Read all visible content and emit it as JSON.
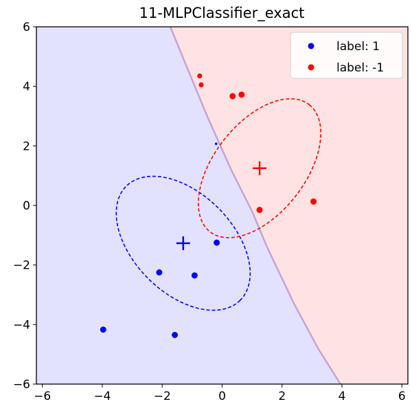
{
  "chart_data": {
    "type": "scatter",
    "title": "11-MLPClassifier_exact",
    "xlabel": "",
    "ylabel": "",
    "xlim": [
      -6.2,
      6.2
    ],
    "ylim": [
      -6,
      6
    ],
    "xticks": [
      -6,
      -4,
      -2,
      0,
      2,
      4,
      6
    ],
    "yticks": [
      -6,
      -4,
      -2,
      0,
      2,
      4,
      6
    ],
    "xtick_labels": [
      "−6",
      "−4",
      "−2",
      "0",
      "2",
      "4",
      "6"
    ],
    "ytick_labels": [
      "−6",
      "−4",
      "−2",
      "0",
      "2",
      "4",
      "6"
    ],
    "grid": false,
    "legend_position": "top-right",
    "colors": {
      "class_1": "#0000ff",
      "class_neg1": "#ff0000",
      "region_1": "#e2e2ff",
      "region_neg1": "#ffe2e2",
      "boundary": "#c8a0d8"
    },
    "decision_boundary": [
      [
        -1.73,
        6
      ],
      [
        -1.2,
        4.7
      ],
      [
        -0.5,
        3.0
      ],
      [
        0.3,
        1.2
      ],
      [
        1.0,
        -0.2
      ],
      [
        1.5,
        -1.4
      ],
      [
        2.4,
        -3.3
      ],
      [
        3.2,
        -4.8
      ],
      [
        3.95,
        -6
      ]
    ],
    "series": [
      {
        "name": "label: 1",
        "color": "#0000ff",
        "points": [
          [
            -3.97,
            -4.17
          ],
          [
            -1.58,
            -4.35
          ],
          [
            -2.1,
            -2.25
          ],
          [
            -0.92,
            -2.35
          ],
          [
            -0.18,
            -1.25
          ]
        ],
        "small_points": [
          [
            -0.2,
            2.07
          ]
        ],
        "mean": [
          -1.3,
          -1.27
        ],
        "ellipse": {
          "center": [
            -1.3,
            -1.27
          ],
          "rx": 2.69,
          "ry": 1.67,
          "angle_deg": 45
        }
      },
      {
        "name": "label: -1",
        "color": "#ff0000",
        "points": [
          [
            0.35,
            3.67
          ],
          [
            0.65,
            3.72
          ],
          [
            1.25,
            -0.15
          ],
          [
            3.05,
            0.13
          ]
        ],
        "small_points": [
          [
            -0.75,
            4.35
          ],
          [
            -0.7,
            4.05
          ]
        ],
        "mean": [
          1.25,
          1.25
        ],
        "ellipse": {
          "center": [
            1.25,
            1.25
          ],
          "rx": 2.69,
          "ry": 1.53,
          "angle_deg": -52
        }
      }
    ]
  }
}
